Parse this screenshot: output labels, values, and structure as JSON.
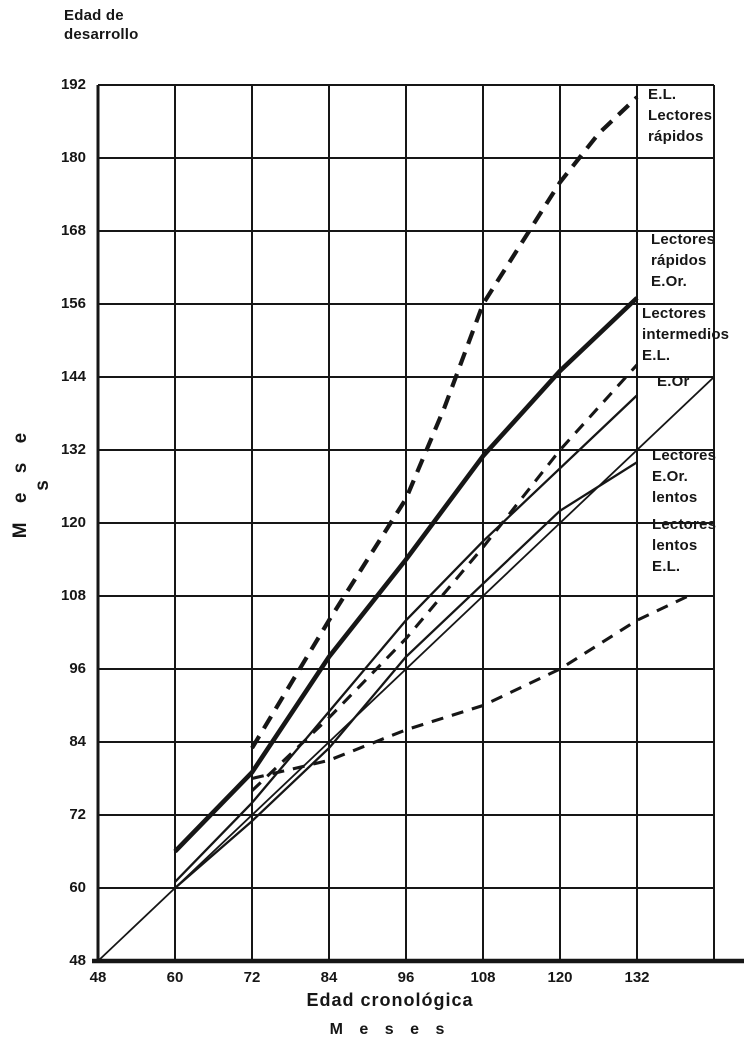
{
  "page": {
    "background": "#ffffff",
    "ink": "#161616"
  },
  "corner_title": {
    "line1": "Edad de",
    "line2": "desarrollo"
  },
  "y_axis": {
    "label": "M e s e s",
    "ticks": [
      192,
      180,
      168,
      156,
      144,
      132,
      120,
      108,
      96,
      84,
      72,
      60,
      48
    ]
  },
  "x_axis": {
    "title": "Edad cronológica",
    "subtitle": "M e s e s",
    "ticks": [
      48,
      60,
      72,
      84,
      96,
      108,
      120,
      132
    ]
  },
  "chart_data": {
    "type": "line",
    "title": "Edad de desarrollo según edad cronológica",
    "xlabel": "Edad cronológica (Meses)",
    "ylabel": "Edad de desarrollo (Meses)",
    "xlim": [
      48,
      144
    ],
    "ylim": [
      48,
      192
    ],
    "grid": true,
    "grid_step": 12,
    "legend_position": "right-inside",
    "series": [
      {
        "id": "identity",
        "name": "identity-reference",
        "label_lines": [],
        "dashed": false,
        "style": "solid-thin",
        "points": [
          [
            48,
            48
          ],
          [
            144,
            144
          ]
        ]
      },
      {
        "id": "rapidos-el",
        "name": "E.L. Lectores rápidos",
        "label_lines": [
          "E.L.",
          "Lectores",
          "rápidos"
        ],
        "dashed": true,
        "style": "dashed-heavy",
        "points": [
          [
            72,
            83
          ],
          [
            84,
            104
          ],
          [
            96,
            124
          ],
          [
            102,
            139
          ],
          [
            108,
            156
          ],
          [
            114,
            166
          ],
          [
            120,
            176
          ],
          [
            126,
            184
          ],
          [
            132,
            190
          ]
        ]
      },
      {
        "id": "rapidos-eor",
        "name": "Lectores rápidos E.Or.",
        "label_lines": [
          "Lectores",
          "rápidos",
          "E.Or."
        ],
        "dashed": false,
        "style": "solid-thick",
        "points": [
          [
            60,
            66
          ],
          [
            72,
            79
          ],
          [
            84,
            98
          ],
          [
            96,
            114
          ],
          [
            108,
            131
          ],
          [
            120,
            145
          ],
          [
            132,
            157
          ]
        ]
      },
      {
        "id": "intermedios-el",
        "name": "Lectores intermedios E.L.",
        "label_lines": [
          "Lectores",
          "intermedios",
          "E.L."
        ],
        "dashed": true,
        "style": "dashed-medium",
        "points": [
          [
            72,
            76
          ],
          [
            84,
            88
          ],
          [
            96,
            101
          ],
          [
            108,
            116
          ],
          [
            120,
            132
          ],
          [
            132,
            146
          ]
        ]
      },
      {
        "id": "intermedios-eor",
        "name": "E.Or (Lectores intermedios)",
        "label_lines": [
          "E.Or"
        ],
        "dashed": false,
        "style": "solid-medium",
        "points": [
          [
            60,
            61
          ],
          [
            72,
            74
          ],
          [
            84,
            89
          ],
          [
            96,
            104
          ],
          [
            108,
            117
          ],
          [
            120,
            129
          ],
          [
            132,
            141
          ]
        ]
      },
      {
        "id": "lentos-eor",
        "name": "Lectores E.Or. lentos",
        "label_lines": [
          "Lectores",
          "E.Or.",
          "lentos"
        ],
        "dashed": false,
        "style": "solid-medium",
        "points": [
          [
            60,
            60
          ],
          [
            72,
            71
          ],
          [
            84,
            83
          ],
          [
            96,
            98
          ],
          [
            108,
            110
          ],
          [
            120,
            122
          ],
          [
            132,
            130
          ]
        ]
      },
      {
        "id": "lentos-el",
        "name": "Lectores lentos E.L.",
        "label_lines": [
          "Lectores",
          "lentos",
          "E.L."
        ],
        "dashed": true,
        "style": "dashed-medium",
        "points": [
          [
            72,
            78
          ],
          [
            84,
            81
          ],
          [
            96,
            86
          ],
          [
            108,
            90
          ],
          [
            120,
            96
          ],
          [
            132,
            104
          ],
          [
            140,
            108
          ]
        ]
      }
    ]
  }
}
